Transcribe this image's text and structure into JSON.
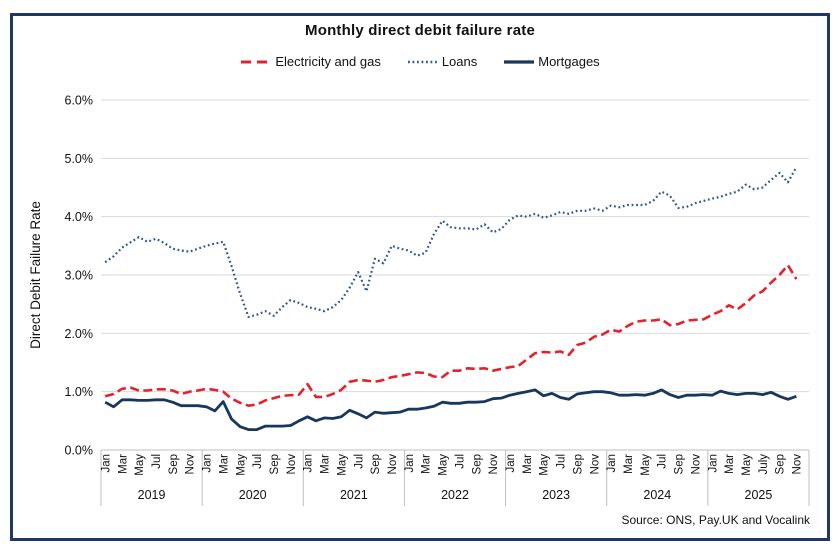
{
  "frame": {
    "border_color": "#1f3864",
    "background": "#ffffff"
  },
  "chart_data": {
    "type": "line",
    "title": "Monthly direct debit failure rate",
    "ylabel": "Direct Debit Failure Rate",
    "xlabel": "",
    "ylim": [
      0,
      6
    ],
    "y_tick_labels": [
      "0.0%",
      "1.0%",
      "2.0%",
      "3.0%",
      "4.0%",
      "5.0%",
      "6.0%"
    ],
    "grid": "horizontal",
    "legend_position": "top-center",
    "x_start": "Jan 2019",
    "x_end": "Nov 2025",
    "years": [
      {
        "label": "2019",
        "month_ticks": [
          "Jan",
          "Mar",
          "May",
          "Jul",
          "Sep",
          "Nov"
        ]
      },
      {
        "label": "2020",
        "month_ticks": [
          "Jan",
          "Mar",
          "May",
          "Jul",
          "Sep",
          "Nov"
        ]
      },
      {
        "label": "2021",
        "month_ticks": [
          "Jan",
          "Mar",
          "May",
          "Jul",
          "Sep",
          "Nov"
        ]
      },
      {
        "label": "2022",
        "month_ticks": [
          "Jan",
          "Mar",
          "May",
          "Jul",
          "Sep",
          "Nov"
        ]
      },
      {
        "label": "2023",
        "month_ticks": [
          "Jan",
          "Mar",
          "May",
          "Jul",
          "Sep",
          "Nov"
        ]
      },
      {
        "label": "2024",
        "month_ticks": [
          "Jan",
          "Mar",
          "May",
          "Jul",
          "Sep",
          "Nov"
        ]
      },
      {
        "label": "2025",
        "month_ticks": [
          "Jan",
          "Mar",
          "May",
          "July",
          "Sep",
          "Nov"
        ]
      }
    ],
    "series": [
      {
        "name": "Electricity and gas",
        "color": "#e5212c",
        "style": "dashed",
        "values": [
          0.92,
          0.96,
          1.05,
          1.07,
          1.02,
          1.02,
          1.04,
          1.04,
          1.02,
          0.96,
          1.0,
          1.02,
          1.05,
          1.03,
          1.0,
          0.88,
          0.81,
          0.76,
          0.78,
          0.85,
          0.89,
          0.93,
          0.94,
          0.95,
          1.13,
          0.91,
          0.91,
          0.96,
          1.03,
          1.17,
          1.2,
          1.19,
          1.17,
          1.2,
          1.25,
          1.27,
          1.3,
          1.33,
          1.32,
          1.26,
          1.25,
          1.36,
          1.36,
          1.4,
          1.39,
          1.4,
          1.36,
          1.39,
          1.42,
          1.44,
          1.55,
          1.66,
          1.68,
          1.67,
          1.69,
          1.63,
          1.8,
          1.84,
          1.94,
          1.98,
          2.06,
          2.03,
          2.13,
          2.2,
          2.22,
          2.22,
          2.24,
          2.14,
          2.16,
          2.22,
          2.23,
          2.24,
          2.32,
          2.38,
          2.48,
          2.41,
          2.52,
          2.65,
          2.72,
          2.87,
          3.0,
          3.17,
          2.93
        ]
      },
      {
        "name": "Loans",
        "color": "#2e5693",
        "style": "dotted",
        "values": [
          3.22,
          3.32,
          3.47,
          3.56,
          3.65,
          3.57,
          3.62,
          3.55,
          3.45,
          3.42,
          3.4,
          3.45,
          3.5,
          3.54,
          3.57,
          3.15,
          2.68,
          2.28,
          2.32,
          2.38,
          2.3,
          2.45,
          2.57,
          2.52,
          2.45,
          2.42,
          2.38,
          2.45,
          2.57,
          2.78,
          3.05,
          2.72,
          3.28,
          3.2,
          3.5,
          3.45,
          3.42,
          3.33,
          3.38,
          3.7,
          3.93,
          3.82,
          3.8,
          3.8,
          3.78,
          3.87,
          3.73,
          3.79,
          3.95,
          4.02,
          4.0,
          4.05,
          3.98,
          4.02,
          4.08,
          4.05,
          4.1,
          4.1,
          4.14,
          4.1,
          4.19,
          4.16,
          4.2,
          4.2,
          4.2,
          4.27,
          4.43,
          4.36,
          4.15,
          4.17,
          4.23,
          4.27,
          4.31,
          4.34,
          4.39,
          4.43,
          4.55,
          4.47,
          4.5,
          4.63,
          4.75,
          4.59,
          4.85
        ]
      },
      {
        "name": "Mortgages",
        "color": "#17375e",
        "style": "solid",
        "values": [
          0.82,
          0.74,
          0.86,
          0.86,
          0.85,
          0.85,
          0.86,
          0.86,
          0.82,
          0.76,
          0.76,
          0.76,
          0.74,
          0.67,
          0.83,
          0.53,
          0.4,
          0.35,
          0.35,
          0.41,
          0.41,
          0.41,
          0.42,
          0.5,
          0.57,
          0.5,
          0.55,
          0.54,
          0.57,
          0.68,
          0.62,
          0.55,
          0.65,
          0.63,
          0.64,
          0.65,
          0.7,
          0.7,
          0.72,
          0.75,
          0.82,
          0.8,
          0.8,
          0.82,
          0.82,
          0.83,
          0.88,
          0.89,
          0.94,
          0.97,
          1.0,
          1.03,
          0.93,
          0.97,
          0.9,
          0.87,
          0.96,
          0.98,
          1.0,
          1.0,
          0.98,
          0.94,
          0.94,
          0.95,
          0.94,
          0.97,
          1.03,
          0.95,
          0.9,
          0.94,
          0.94,
          0.95,
          0.94,
          1.01,
          0.97,
          0.95,
          0.97,
          0.97,
          0.95,
          0.99,
          0.92,
          0.87,
          0.92
        ]
      }
    ],
    "source": "Source: ONS, Pay.UK and Vocalink"
  }
}
